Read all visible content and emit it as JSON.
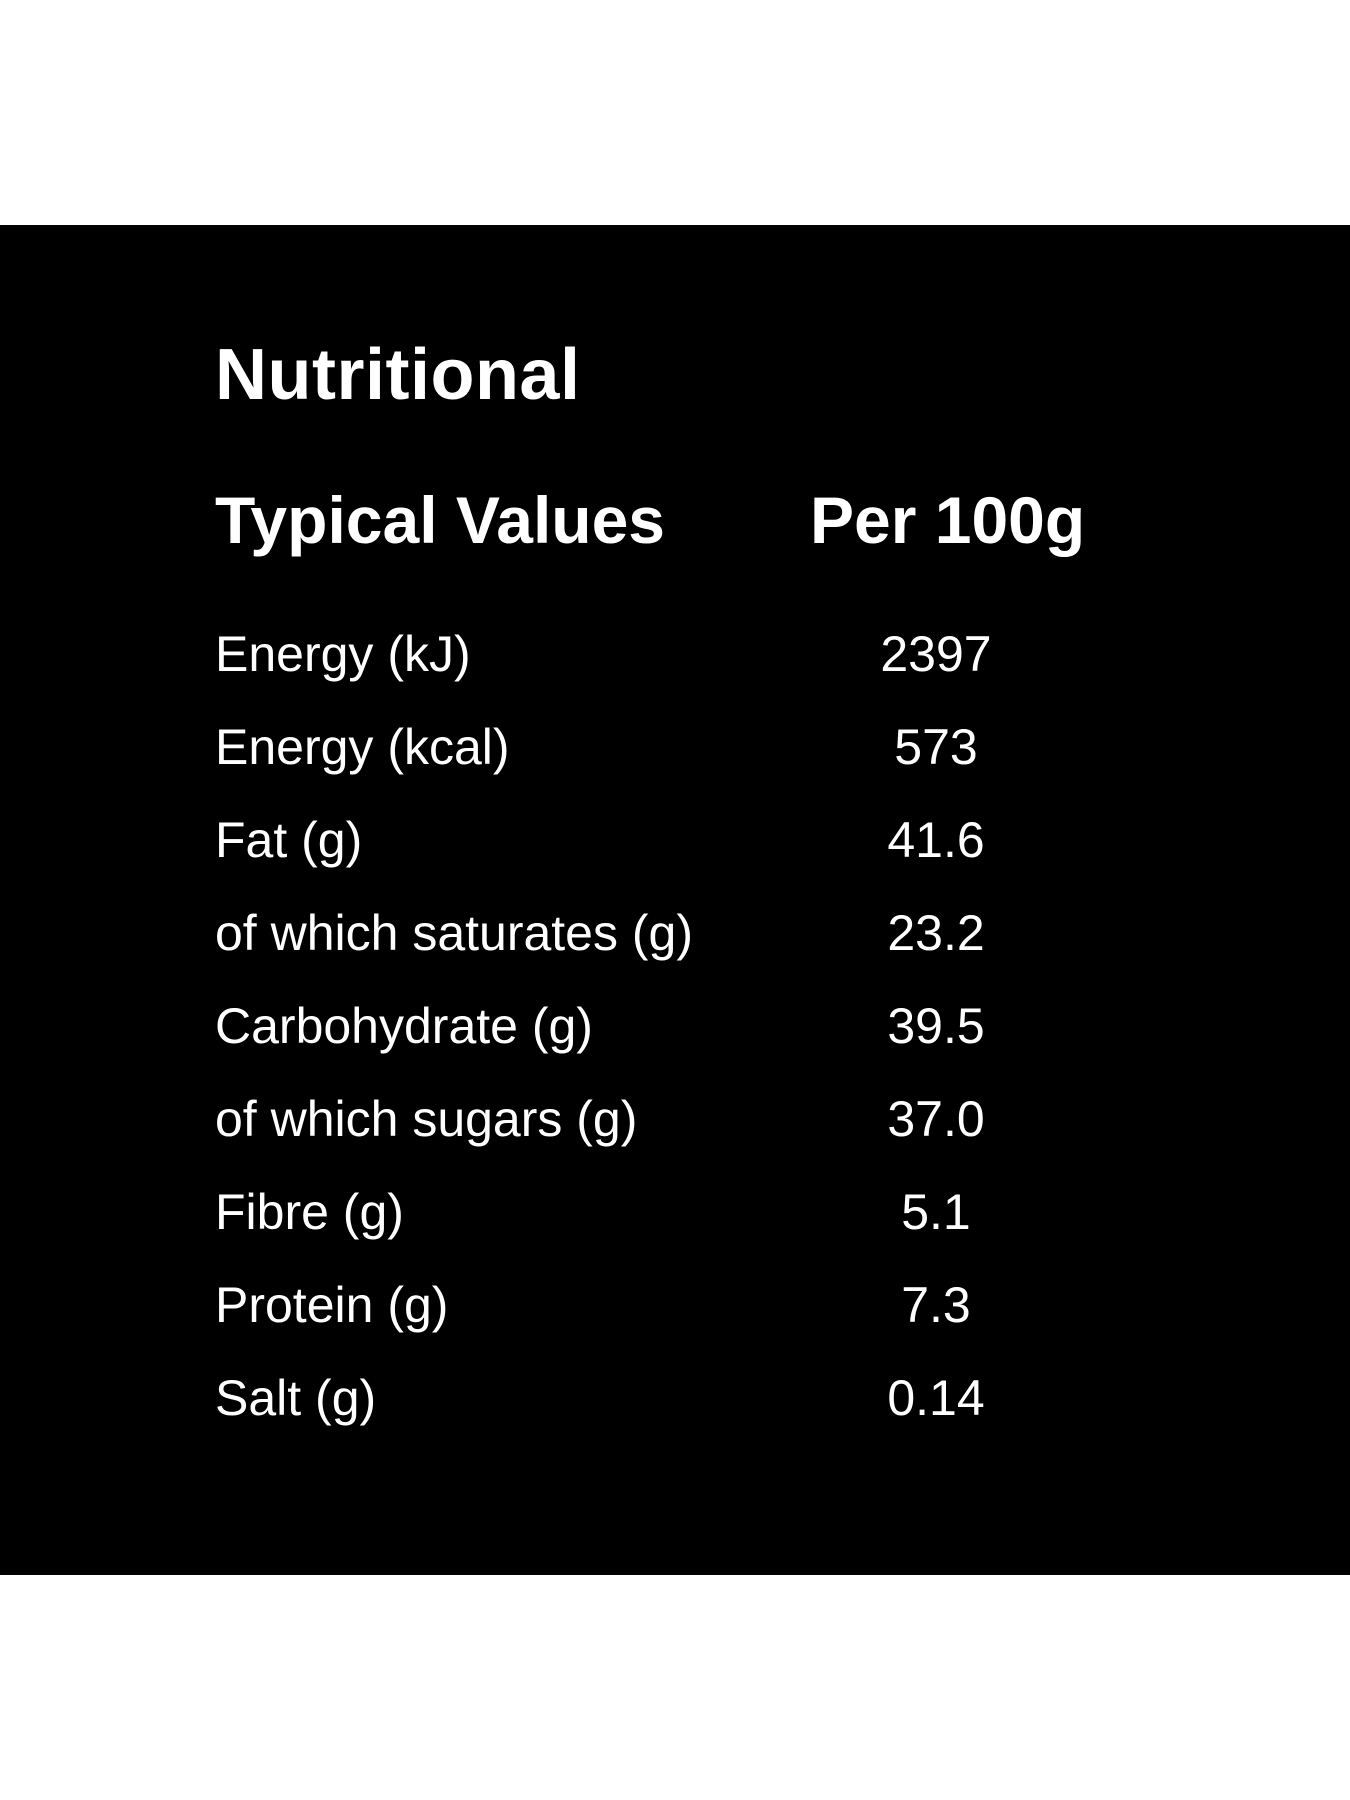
{
  "title": "Nutritional",
  "header": {
    "label": "Typical Values",
    "value": "Per 100g"
  },
  "rows": [
    {
      "label": "Energy (kJ)",
      "value": "2397"
    },
    {
      "label": "Energy (kcal)",
      "value": "573"
    },
    {
      "label": "Fat (g)",
      "value": "41.6"
    },
    {
      "label": "of which saturates (g)",
      "value": "23.2"
    },
    {
      "label": "Carbohydrate (g)",
      "value": "39.5"
    },
    {
      "label": "of which sugars (g)",
      "value": "37.0"
    },
    {
      "label": "Fibre (g)",
      "value": "5.1"
    },
    {
      "label": "Protein (g)",
      "value": "7.3"
    },
    {
      "label": "Salt (g)",
      "value": "0.14"
    }
  ],
  "colors": {
    "page_background": "#ffffff",
    "panel_background": "#000000",
    "text": "#ffffff"
  }
}
